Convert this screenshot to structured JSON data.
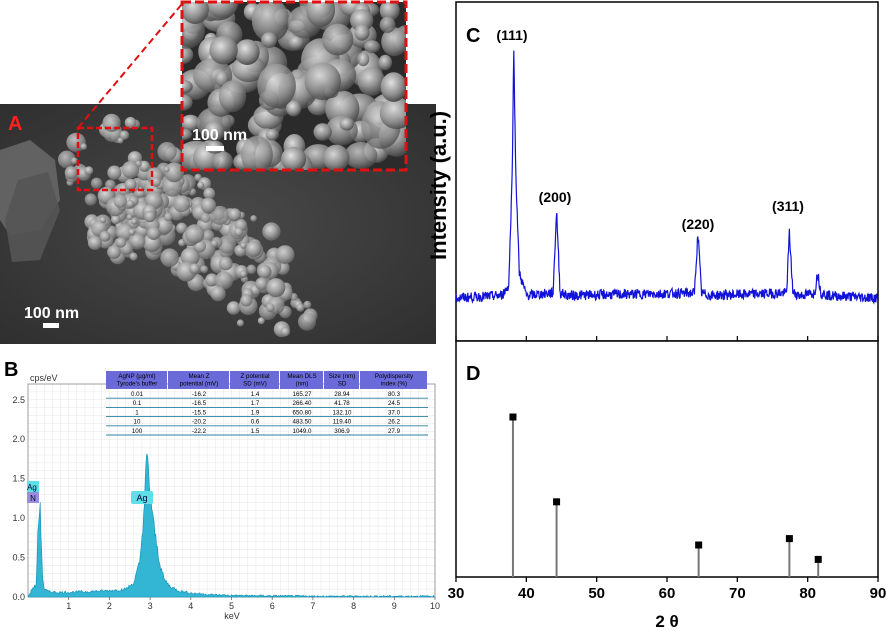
{
  "panels": {
    "A": {
      "label": "A",
      "scalebar_main": "100 nm",
      "scalebar_inset": "100 nm"
    },
    "B": {
      "label": "B",
      "ylabel": "cps/eV",
      "xlabel": "keV",
      "peak_labels": {
        "ag_main": "Ag",
        "ag_left": "Ag",
        "n_left": "N"
      }
    },
    "C": {
      "label": "C",
      "ylabel": "Intensity (a.u.)",
      "peaks": [
        {
          "hkl": "(111)"
        },
        {
          "hkl": "(200)"
        },
        {
          "hkl": "(220)"
        },
        {
          "hkl": "(311)"
        }
      ]
    },
    "D": {
      "label": "D",
      "xlabel": "2 θ"
    }
  },
  "table": {
    "headers": [
      [
        "AgNP (µg/ml)",
        "Tyrode's buffer"
      ],
      [
        "Mean Z",
        "potential (mV)"
      ],
      [
        "Z potential",
        "SD (mV)"
      ],
      [
        "Mean DLS",
        "(nm)"
      ],
      [
        "Size (nm)",
        "SD"
      ],
      [
        "Polydispersity",
        "index (%)"
      ]
    ],
    "rows": [
      [
        "0.01",
        "-16.2",
        "1.4",
        "165.27",
        "28.94",
        "80.3"
      ],
      [
        "0.1",
        "-16.5",
        "1.7",
        "266.40",
        "41.78",
        "24.5"
      ],
      [
        "1",
        "-15.5",
        "1.9",
        "650.80",
        "132.10",
        "37.0"
      ],
      [
        "10",
        "-20.2",
        "0.6",
        "483.50",
        "119.40",
        "26.2"
      ],
      [
        "100",
        "-22.2",
        "1.5",
        "1049.0",
        "306.9",
        "27.9"
      ]
    ]
  },
  "chart_data": [
    {
      "type": "area",
      "panel": "B",
      "ylabel": "cps/eV",
      "xlabel": "keV",
      "xlim": [
        0,
        10
      ],
      "ylim": [
        0,
        2.7
      ],
      "xticks": [
        1,
        2,
        3,
        4,
        5,
        6,
        7,
        8,
        9,
        10
      ],
      "yticks": [
        0.0,
        0.5,
        1.0,
        1.5,
        2.0,
        2.5
      ],
      "tick_labels_x": [
        "1",
        "2",
        "3",
        "4",
        "5",
        "6",
        "7",
        "8",
        "9",
        "10"
      ],
      "tick_labels_y": [
        "0.0",
        "0.5",
        "1.0",
        "1.5",
        "2.0",
        "2.5"
      ],
      "grid": true,
      "x": [
        0.0,
        0.1,
        0.2,
        0.25,
        0.3,
        0.35,
        0.4,
        0.5,
        0.7,
        1.0,
        1.5,
        2.0,
        2.4,
        2.6,
        2.75,
        2.85,
        2.92,
        2.98,
        3.03,
        3.08,
        3.15,
        3.25,
        3.35,
        3.5,
        3.7,
        4.0,
        4.5,
        5.0,
        6.0,
        7.0,
        8.0,
        9.0,
        10.0
      ],
      "y": [
        0.0,
        0.1,
        0.15,
        0.9,
        1.2,
        0.3,
        0.1,
        0.07,
        0.06,
        0.06,
        0.07,
        0.08,
        0.1,
        0.18,
        0.45,
        1.1,
        1.8,
        1.45,
        1.2,
        0.95,
        0.7,
        0.4,
        0.22,
        0.13,
        0.08,
        0.05,
        0.03,
        0.02,
        0.015,
        0.01,
        0.01,
        0.01,
        0.01
      ]
    },
    {
      "type": "line",
      "panel": "C",
      "ylabel": "Intensity (a.u.)",
      "xlim": [
        30,
        90
      ],
      "ylim": [
        0,
        1
      ],
      "x": [
        30,
        36.5,
        37.5,
        38.0,
        38.2,
        38.5,
        39.0,
        40.0,
        43.8,
        44.3,
        44.8,
        46,
        63.9,
        64.4,
        64.9,
        66,
        77.0,
        77.4,
        77.9,
        79,
        81.0,
        81.4,
        81.9,
        83,
        90
      ],
      "y": [
        0.0,
        0.01,
        0.05,
        0.5,
        1.0,
        0.5,
        0.1,
        0.01,
        0.02,
        0.35,
        0.02,
        0.01,
        0.02,
        0.26,
        0.02,
        0.01,
        0.02,
        0.26,
        0.02,
        0.01,
        0.02,
        0.1,
        0.02,
        0.01,
        0.0
      ],
      "peaks_x": [
        38.2,
        44.4,
        64.6,
        77.5
      ],
      "peak_labels": [
        "(111)",
        "(200)",
        "(220)",
        "(311)"
      ]
    },
    {
      "type": "scatter",
      "panel": "D",
      "xlabel": "2 θ",
      "xlim": [
        30,
        90
      ],
      "xticks": [
        30,
        40,
        50,
        60,
        70,
        80,
        90
      ],
      "tick_labels_x": [
        "30",
        "40",
        "50",
        "60",
        "70",
        "80",
        "90"
      ],
      "ylim": [
        0,
        1
      ],
      "x": [
        38.1,
        44.3,
        64.5,
        77.4,
        81.5
      ],
      "y": [
        1.0,
        0.47,
        0.2,
        0.24,
        0.11
      ]
    }
  ]
}
